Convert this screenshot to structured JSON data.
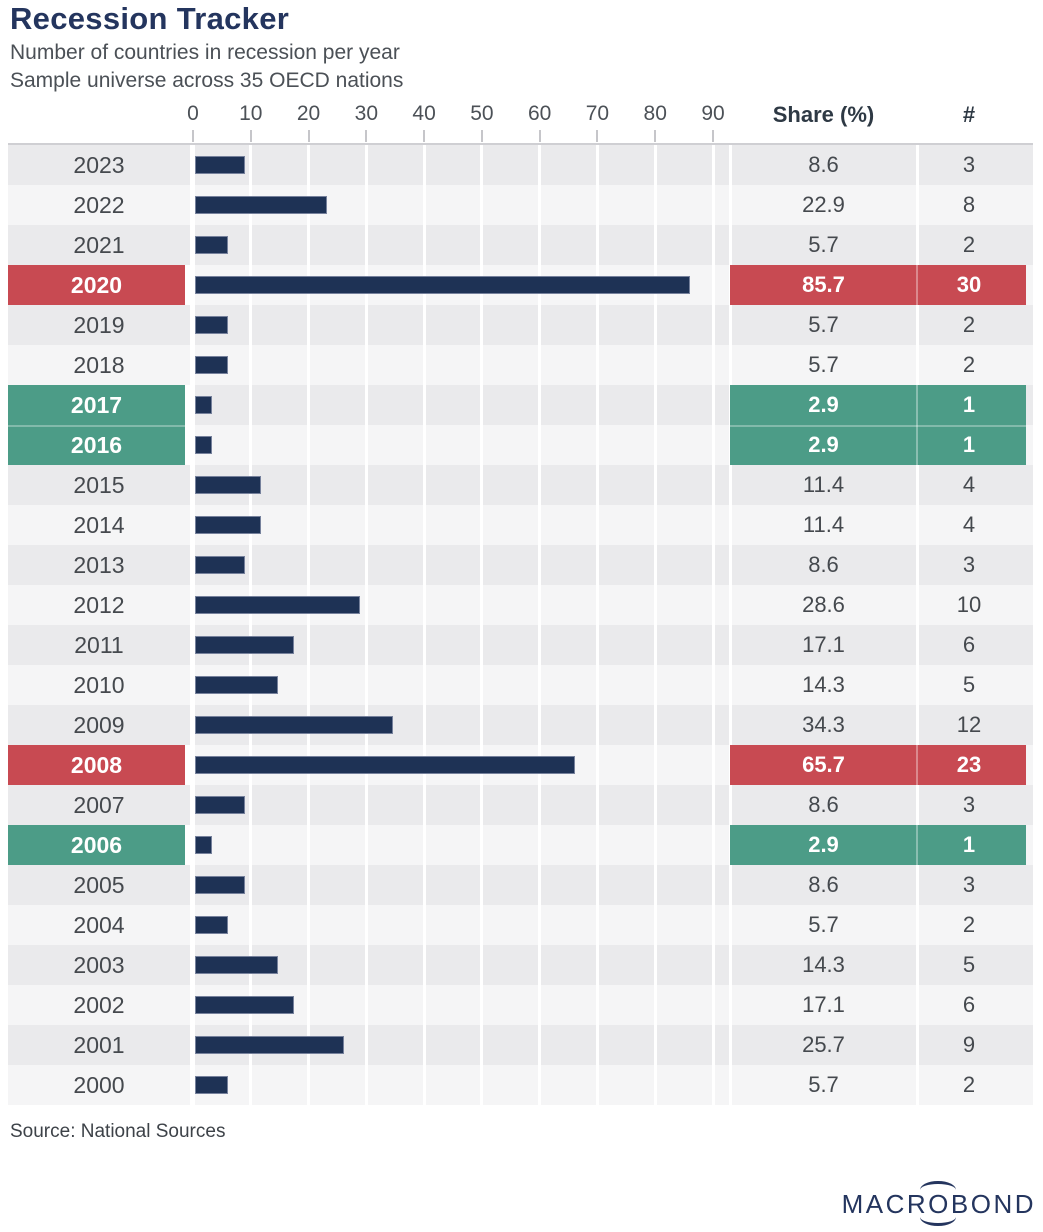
{
  "header": {
    "title": "Recession Tracker",
    "subtitle_line1": "Number of countries in recession per year",
    "subtitle_line2": "Sample universe across 35 OECD nations"
  },
  "table": {
    "share_header": "Share (%)",
    "count_header": "#"
  },
  "footer": {
    "source": "Source: National Sources",
    "logo_pre": "MACR",
    "logo_o": "O",
    "logo_post": "BOND"
  },
  "colors": {
    "bar_navy": "#1e3255",
    "title_navy": "#24355e",
    "red_highlight": "#c84a52",
    "green_highlight": "#4c9c87",
    "stripe_dark": "#eaeaec",
    "stripe_light": "#f5f5f6",
    "highlight_text": "#ffffff"
  },
  "chart_data": {
    "type": "bar",
    "orientation": "horizontal",
    "title": "Recession Tracker",
    "subtitle": "Number of countries in recession per year",
    "sample_note": "Sample universe across 35 OECD nations",
    "xlim": [
      0,
      90
    ],
    "x_ticks": [
      0,
      10,
      20,
      30,
      40,
      50,
      60,
      70,
      80,
      90
    ],
    "grid": true,
    "categories": [
      "2023",
      "2022",
      "2021",
      "2020",
      "2019",
      "2018",
      "2017",
      "2016",
      "2015",
      "2014",
      "2013",
      "2012",
      "2011",
      "2010",
      "2009",
      "2008",
      "2007",
      "2006",
      "2005",
      "2004",
      "2003",
      "2002",
      "2001",
      "2000"
    ],
    "series": [
      {
        "name": "Share (%)",
        "values": [
          8.6,
          22.9,
          5.7,
          85.7,
          5.7,
          5.7,
          2.9,
          2.9,
          11.4,
          11.4,
          8.6,
          28.6,
          17.1,
          14.3,
          34.3,
          65.7,
          8.6,
          2.9,
          8.6,
          5.7,
          14.3,
          17.1,
          25.7,
          5.7
        ]
      },
      {
        "name": "#",
        "values": [
          3,
          8,
          2,
          30,
          2,
          2,
          1,
          1,
          4,
          4,
          3,
          10,
          6,
          5,
          12,
          23,
          3,
          1,
          3,
          2,
          5,
          6,
          9,
          2
        ]
      }
    ],
    "highlighted_rows": {
      "2020": "red",
      "2008": "red",
      "2017": "green",
      "2016": "green",
      "2006": "green"
    }
  }
}
